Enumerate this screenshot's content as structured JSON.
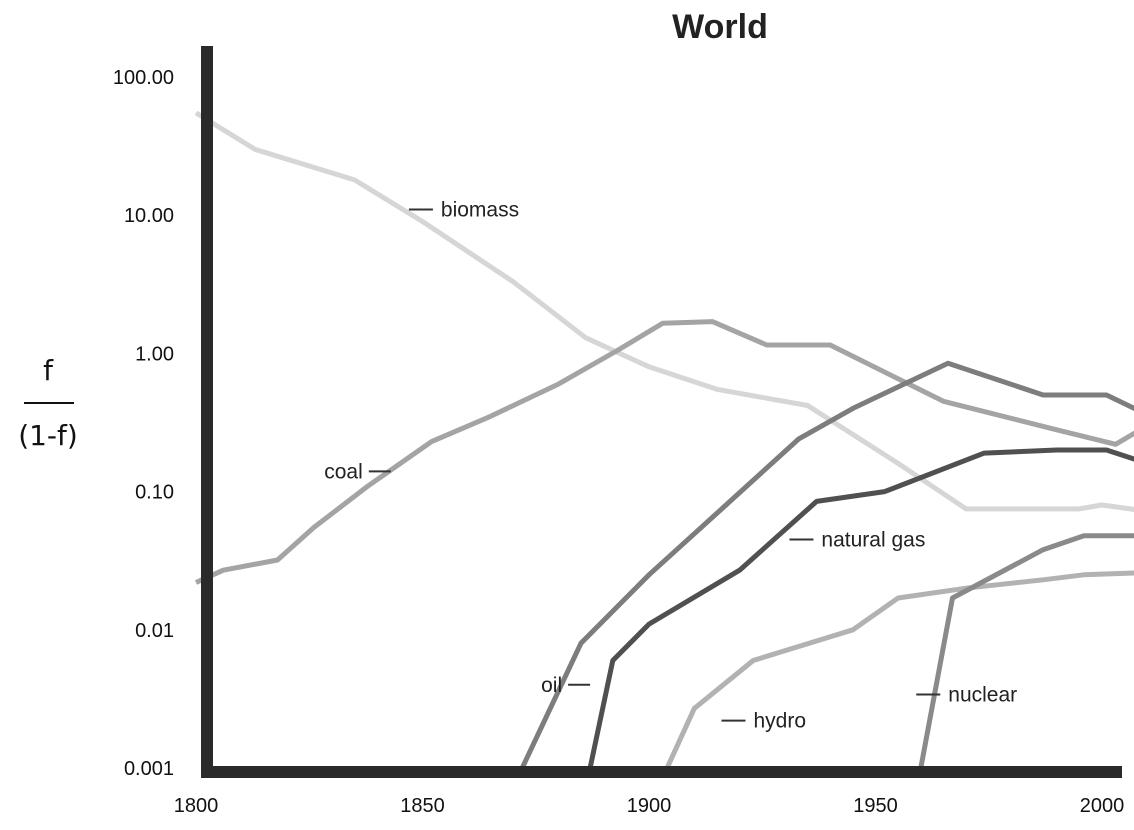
{
  "chart_data": {
    "type": "line",
    "title": "World",
    "ylabel": {
      "numerator": "f",
      "denominator": "(1-f)"
    },
    "xlabel": "",
    "xlim": [
      1800,
      2010
    ],
    "ylim": [
      0.001,
      100
    ],
    "yscale": "log",
    "xticks": [
      1800,
      1850,
      1900,
      1950,
      2000
    ],
    "yticks": [
      {
        "value": 100,
        "label": "100.00"
      },
      {
        "value": 10,
        "label": "10.00"
      },
      {
        "value": 1,
        "label": "1.00"
      },
      {
        "value": 0.1,
        "label": "0.10"
      },
      {
        "value": 0.01,
        "label": "0.01"
      },
      {
        "value": 0.001,
        "label": "0.001"
      }
    ],
    "grid": false,
    "legend": "inline labels",
    "series": [
      {
        "name": "biomass",
        "color": "#d6d6d6",
        "width": 5,
        "label_at": [
          1847,
          11
        ],
        "points": [
          [
            1800,
            55
          ],
          [
            1813,
            30
          ],
          [
            1835,
            18
          ],
          [
            1850,
            9
          ],
          [
            1870,
            3.3
          ],
          [
            1886,
            1.3
          ],
          [
            1900,
            0.8
          ],
          [
            1915,
            0.55
          ],
          [
            1935,
            0.42
          ],
          [
            1955,
            0.16
          ],
          [
            1970,
            0.075
          ],
          [
            1985,
            0.075
          ],
          [
            1995,
            0.075
          ],
          [
            2000,
            0.08
          ],
          [
            2010,
            0.072
          ]
        ]
      },
      {
        "name": "coal",
        "color": "#a4a4a4",
        "width": 5,
        "label_at": [
          1843,
          0.14
        ],
        "points": [
          [
            1800,
            0.022
          ],
          [
            1806,
            0.027
          ],
          [
            1818,
            0.032
          ],
          [
            1826,
            0.055
          ],
          [
            1838,
            0.11
          ],
          [
            1852,
            0.23
          ],
          [
            1865,
            0.35
          ],
          [
            1880,
            0.6
          ],
          [
            1893,
            1.05
          ],
          [
            1903,
            1.65
          ],
          [
            1914,
            1.7
          ],
          [
            1926,
            1.15
          ],
          [
            1940,
            1.15
          ],
          [
            1965,
            0.45
          ],
          [
            1990,
            0.28
          ],
          [
            2003,
            0.22
          ],
          [
            2010,
            0.3
          ]
        ]
      },
      {
        "name": "oil",
        "color": "#7d7d7d",
        "width": 5,
        "label_at": [
          1887,
          0.004
        ],
        "points": [
          [
            1872,
            0.001
          ],
          [
            1885,
            0.008
          ],
          [
            1900,
            0.025
          ],
          [
            1917,
            0.08
          ],
          [
            1933,
            0.24
          ],
          [
            1945,
            0.4
          ],
          [
            1966,
            0.85
          ],
          [
            1987,
            0.5
          ],
          [
            2001,
            0.5
          ],
          [
            2010,
            0.36
          ]
        ]
      },
      {
        "name": "natural gas",
        "color": "#505050",
        "width": 5,
        "label_at": [
          1931,
          0.045
        ],
        "points": [
          [
            1887,
            0.001
          ],
          [
            1892,
            0.006
          ],
          [
            1900,
            0.011
          ],
          [
            1920,
            0.027
          ],
          [
            1937,
            0.085
          ],
          [
            1952,
            0.1
          ],
          [
            1974,
            0.19
          ],
          [
            1990,
            0.2
          ],
          [
            2001,
            0.2
          ],
          [
            2010,
            0.16
          ]
        ]
      },
      {
        "name": "hydro",
        "color": "#b2b2b2",
        "width": 5,
        "label_at": [
          1916,
          0.0022
        ],
        "points": [
          [
            1904,
            0.001
          ],
          [
            1910,
            0.0027
          ],
          [
            1923,
            0.006
          ],
          [
            1945,
            0.01
          ],
          [
            1955,
            0.017
          ],
          [
            1970,
            0.02
          ],
          [
            1987,
            0.023
          ],
          [
            1996,
            0.025
          ],
          [
            2010,
            0.026
          ]
        ]
      },
      {
        "name": "nuclear",
        "color": "#8a8a8a",
        "width": 5,
        "label_at": [
          1959,
          0.0034
        ],
        "points": [
          [
            1960,
            0.001
          ],
          [
            1967,
            0.017
          ],
          [
            1987,
            0.038
          ],
          [
            1996,
            0.048
          ],
          [
            2010,
            0.048
          ]
        ]
      }
    ]
  }
}
